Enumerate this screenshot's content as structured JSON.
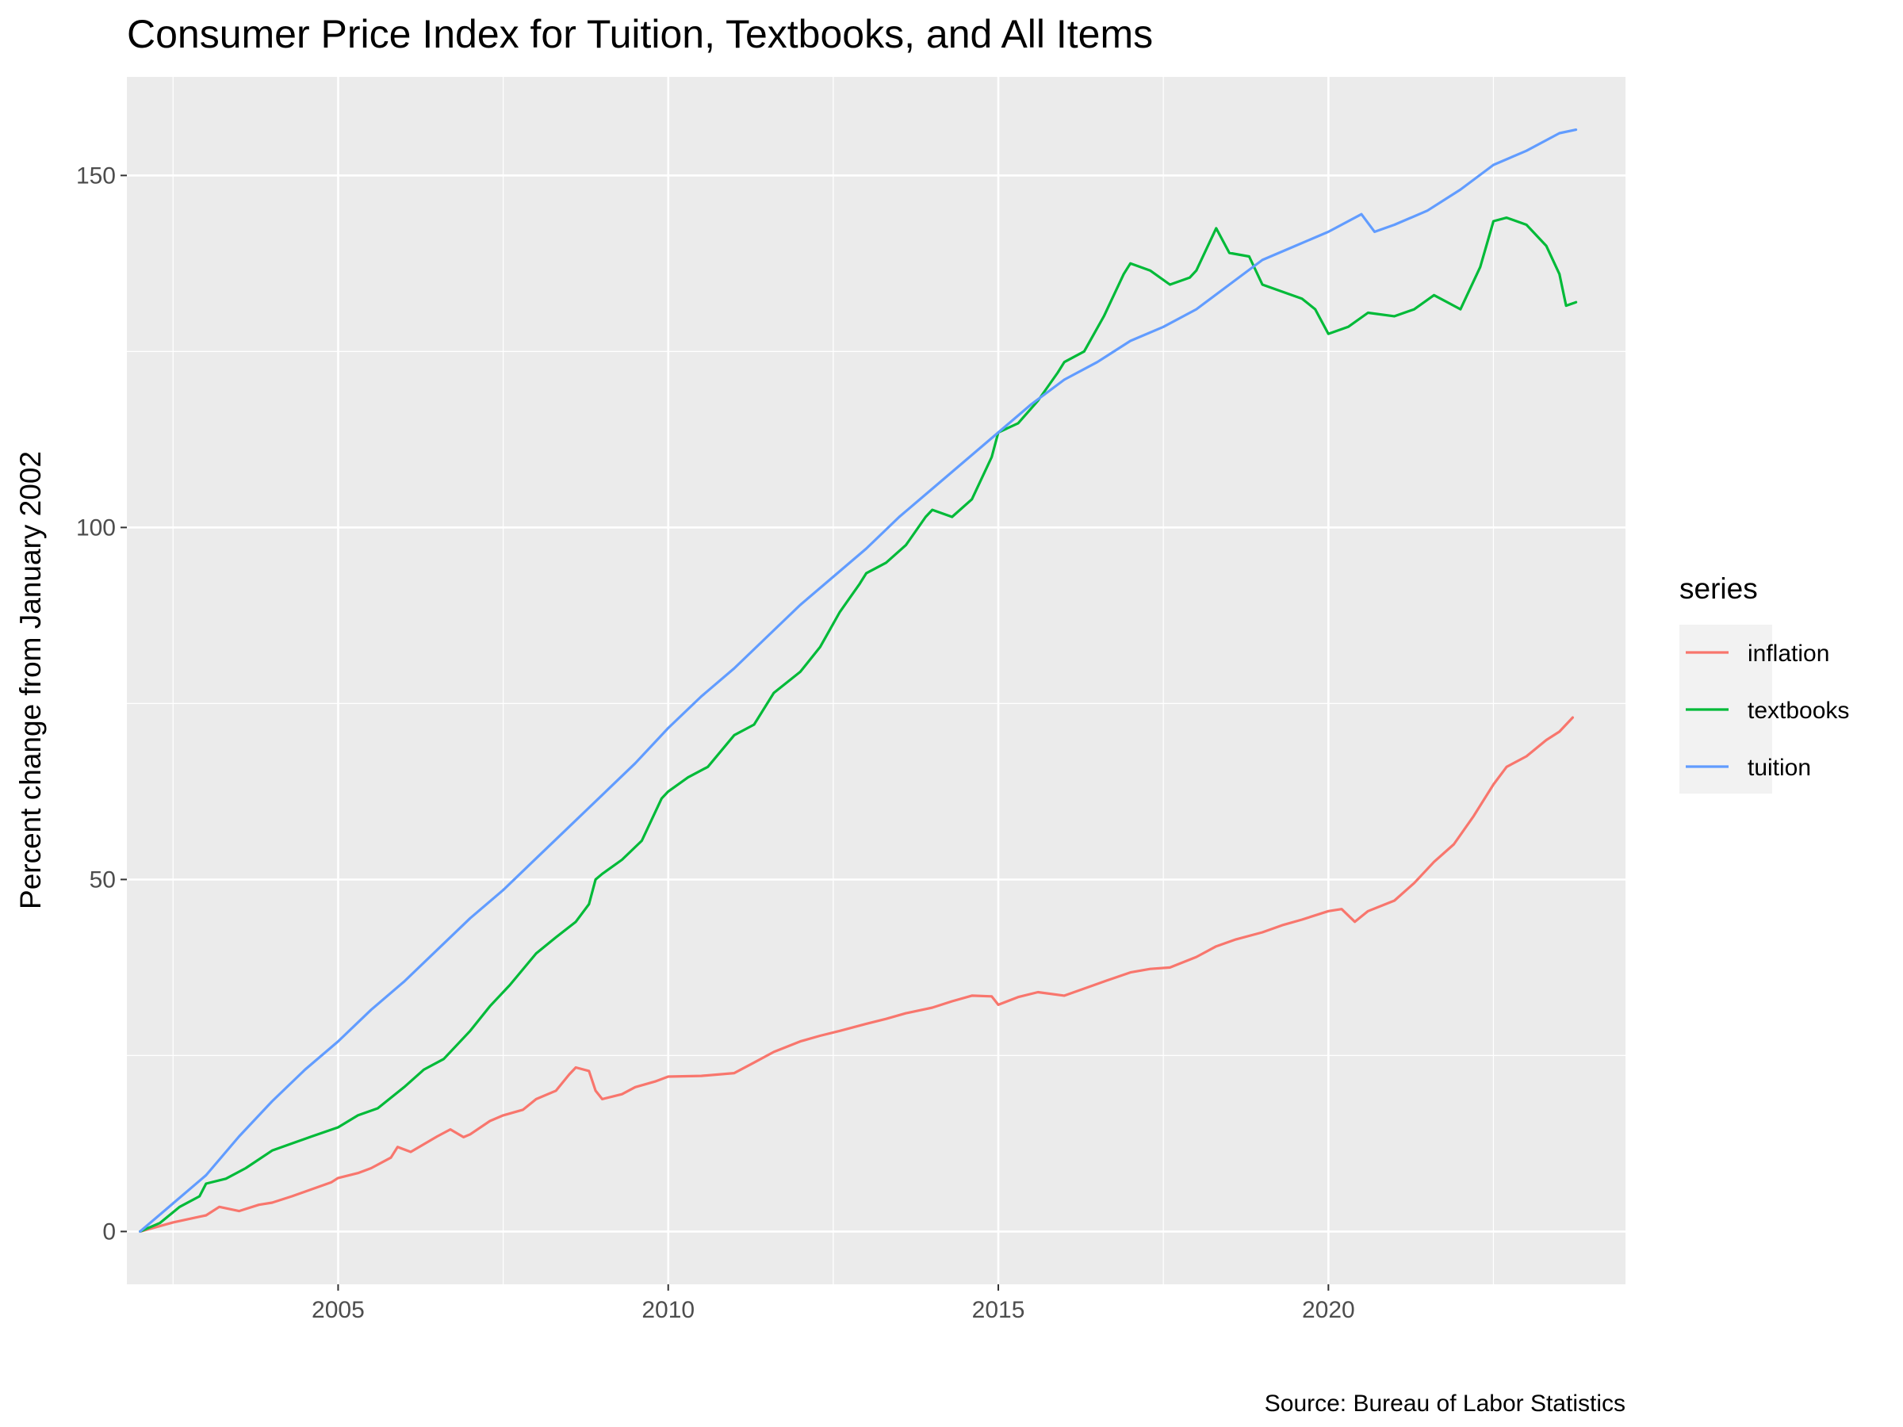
{
  "chart_data": {
    "type": "line",
    "title": "Consumer Price Index for Tuition, Textbooks, and All Items",
    "xlabel": "",
    "ylabel": "Percent change from January 2002",
    "caption": "Source: Bureau of Labor Statistics",
    "xlim": [
      2001.8,
      2024.5
    ],
    "ylim": [
      -7.5,
      164
    ],
    "xticks": [
      2005,
      2010,
      2015,
      2020
    ],
    "yticks": [
      0,
      50,
      100,
      150
    ],
    "grid": true,
    "legend": {
      "title": "series",
      "position": "right"
    },
    "series": [
      {
        "name": "inflation",
        "color": "#F8766D",
        "points": [
          [
            2002.0,
            0
          ],
          [
            2002.5,
            1.3
          ],
          [
            2003.0,
            2.3
          ],
          [
            2003.2,
            3.5
          ],
          [
            2003.5,
            2.9
          ],
          [
            2003.8,
            3.8
          ],
          [
            2004.0,
            4.1
          ],
          [
            2004.3,
            5.0
          ],
          [
            2004.6,
            6.0
          ],
          [
            2004.9,
            7.0
          ],
          [
            2005.0,
            7.6
          ],
          [
            2005.3,
            8.3
          ],
          [
            2005.5,
            9.0
          ],
          [
            2005.8,
            10.5
          ],
          [
            2005.9,
            12.0
          ],
          [
            2006.1,
            11.3
          ],
          [
            2006.5,
            13.5
          ],
          [
            2006.7,
            14.5
          ],
          [
            2006.9,
            13.4
          ],
          [
            2007.0,
            13.8
          ],
          [
            2007.3,
            15.7
          ],
          [
            2007.5,
            16.5
          ],
          [
            2007.8,
            17.3
          ],
          [
            2008.0,
            18.8
          ],
          [
            2008.3,
            20.0
          ],
          [
            2008.5,
            22.3
          ],
          [
            2008.6,
            23.3
          ],
          [
            2008.8,
            22.8
          ],
          [
            2008.9,
            20.0
          ],
          [
            2009.0,
            18.8
          ],
          [
            2009.3,
            19.5
          ],
          [
            2009.5,
            20.5
          ],
          [
            2009.8,
            21.3
          ],
          [
            2010.0,
            22.0
          ],
          [
            2010.5,
            22.1
          ],
          [
            2011.0,
            22.5
          ],
          [
            2011.3,
            24.0
          ],
          [
            2011.6,
            25.5
          ],
          [
            2012.0,
            27.0
          ],
          [
            2012.3,
            27.8
          ],
          [
            2012.6,
            28.5
          ],
          [
            2013.0,
            29.5
          ],
          [
            2013.3,
            30.2
          ],
          [
            2013.6,
            31.0
          ],
          [
            2014.0,
            31.8
          ],
          [
            2014.3,
            32.7
          ],
          [
            2014.6,
            33.5
          ],
          [
            2014.9,
            33.4
          ],
          [
            2015.0,
            32.2
          ],
          [
            2015.3,
            33.3
          ],
          [
            2015.6,
            34.0
          ],
          [
            2016.0,
            33.5
          ],
          [
            2016.3,
            34.5
          ],
          [
            2016.6,
            35.5
          ],
          [
            2017.0,
            36.8
          ],
          [
            2017.3,
            37.3
          ],
          [
            2017.6,
            37.5
          ],
          [
            2018.0,
            39.0
          ],
          [
            2018.3,
            40.5
          ],
          [
            2018.6,
            41.5
          ],
          [
            2019.0,
            42.5
          ],
          [
            2019.3,
            43.5
          ],
          [
            2019.6,
            44.3
          ],
          [
            2020.0,
            45.5
          ],
          [
            2020.2,
            45.8
          ],
          [
            2020.4,
            44.0
          ],
          [
            2020.6,
            45.5
          ],
          [
            2021.0,
            47.0
          ],
          [
            2021.3,
            49.5
          ],
          [
            2021.6,
            52.5
          ],
          [
            2021.9,
            55.0
          ],
          [
            2022.2,
            59.0
          ],
          [
            2022.5,
            63.5
          ],
          [
            2022.7,
            66.0
          ],
          [
            2023.0,
            67.5
          ],
          [
            2023.3,
            69.8
          ],
          [
            2023.5,
            71.0
          ],
          [
            2023.7,
            73.0
          ]
        ]
      },
      {
        "name": "textbooks",
        "color": "#00BA38",
        "points": [
          [
            2002.0,
            0
          ],
          [
            2002.3,
            1.2
          ],
          [
            2002.6,
            3.5
          ],
          [
            2002.9,
            5.0
          ],
          [
            2003.0,
            6.8
          ],
          [
            2003.3,
            7.5
          ],
          [
            2003.6,
            9.0
          ],
          [
            2004.0,
            11.5
          ],
          [
            2004.3,
            12.5
          ],
          [
            2004.6,
            13.5
          ],
          [
            2005.0,
            14.8
          ],
          [
            2005.3,
            16.5
          ],
          [
            2005.6,
            17.5
          ],
          [
            2006.0,
            20.5
          ],
          [
            2006.3,
            23.0
          ],
          [
            2006.6,
            24.5
          ],
          [
            2007.0,
            28.5
          ],
          [
            2007.3,
            32.0
          ],
          [
            2007.6,
            35.0
          ],
          [
            2008.0,
            39.5
          ],
          [
            2008.3,
            41.8
          ],
          [
            2008.6,
            44.0
          ],
          [
            2008.8,
            46.5
          ],
          [
            2008.9,
            50.0
          ],
          [
            2009.0,
            50.8
          ],
          [
            2009.3,
            52.8
          ],
          [
            2009.6,
            55.5
          ],
          [
            2009.9,
            61.5
          ],
          [
            2010.0,
            62.5
          ],
          [
            2010.3,
            64.5
          ],
          [
            2010.6,
            66.0
          ],
          [
            2011.0,
            70.5
          ],
          [
            2011.3,
            72.0
          ],
          [
            2011.6,
            76.5
          ],
          [
            2012.0,
            79.5
          ],
          [
            2012.3,
            83.0
          ],
          [
            2012.6,
            88.0
          ],
          [
            2012.9,
            92.0
          ],
          [
            2013.0,
            93.5
          ],
          [
            2013.3,
            95.0
          ],
          [
            2013.6,
            97.5
          ],
          [
            2013.9,
            101.5
          ],
          [
            2014.0,
            102.5
          ],
          [
            2014.3,
            101.5
          ],
          [
            2014.6,
            104.0
          ],
          [
            2014.9,
            110.0
          ],
          [
            2015.0,
            113.5
          ],
          [
            2015.3,
            114.8
          ],
          [
            2015.6,
            118.0
          ],
          [
            2015.9,
            122.0
          ],
          [
            2016.0,
            123.5
          ],
          [
            2016.3,
            125.0
          ],
          [
            2016.6,
            130.0
          ],
          [
            2016.9,
            136.0
          ],
          [
            2017.0,
            137.5
          ],
          [
            2017.3,
            136.5
          ],
          [
            2017.6,
            134.5
          ],
          [
            2017.9,
            135.5
          ],
          [
            2018.0,
            136.5
          ],
          [
            2018.3,
            142.5
          ],
          [
            2018.5,
            139.0
          ],
          [
            2018.8,
            138.5
          ],
          [
            2019.0,
            134.5
          ],
          [
            2019.3,
            133.5
          ],
          [
            2019.6,
            132.5
          ],
          [
            2019.8,
            131.0
          ],
          [
            2020.0,
            127.5
          ],
          [
            2020.3,
            128.5
          ],
          [
            2020.6,
            130.5
          ],
          [
            2021.0,
            130.0
          ],
          [
            2021.3,
            131.0
          ],
          [
            2021.6,
            133.0
          ],
          [
            2022.0,
            131.0
          ],
          [
            2022.3,
            137.0
          ],
          [
            2022.5,
            143.5
          ],
          [
            2022.7,
            144.0
          ],
          [
            2023.0,
            143.0
          ],
          [
            2023.3,
            140.0
          ],
          [
            2023.5,
            136.0
          ],
          [
            2023.6,
            131.5
          ],
          [
            2023.75,
            132.0
          ]
        ]
      },
      {
        "name": "tuition",
        "color": "#619CFF",
        "points": [
          [
            2002.0,
            0
          ],
          [
            2002.5,
            4.0
          ],
          [
            2003.0,
            8.0
          ],
          [
            2003.5,
            13.5
          ],
          [
            2004.0,
            18.5
          ],
          [
            2004.5,
            23.0
          ],
          [
            2005.0,
            27.0
          ],
          [
            2005.5,
            31.5
          ],
          [
            2006.0,
            35.5
          ],
          [
            2006.5,
            40.0
          ],
          [
            2007.0,
            44.5
          ],
          [
            2007.5,
            48.5
          ],
          [
            2008.0,
            53.0
          ],
          [
            2008.5,
            57.5
          ],
          [
            2009.0,
            62.0
          ],
          [
            2009.5,
            66.5
          ],
          [
            2010.0,
            71.5
          ],
          [
            2010.5,
            76.0
          ],
          [
            2011.0,
            80.0
          ],
          [
            2011.5,
            84.5
          ],
          [
            2012.0,
            89.0
          ],
          [
            2012.5,
            93.0
          ],
          [
            2013.0,
            97.0
          ],
          [
            2013.5,
            101.5
          ],
          [
            2014.0,
            105.5
          ],
          [
            2014.5,
            109.5
          ],
          [
            2015.0,
            113.5
          ],
          [
            2015.5,
            117.5
          ],
          [
            2016.0,
            121.0
          ],
          [
            2016.5,
            123.5
          ],
          [
            2017.0,
            126.5
          ],
          [
            2017.5,
            128.5
          ],
          [
            2018.0,
            131.0
          ],
          [
            2018.5,
            134.5
          ],
          [
            2019.0,
            138.0
          ],
          [
            2019.5,
            140.0
          ],
          [
            2020.0,
            142.0
          ],
          [
            2020.5,
            144.5
          ],
          [
            2020.7,
            142.0
          ],
          [
            2021.0,
            143.0
          ],
          [
            2021.5,
            145.0
          ],
          [
            2022.0,
            148.0
          ],
          [
            2022.5,
            151.5
          ],
          [
            2023.0,
            153.5
          ],
          [
            2023.5,
            156.0
          ],
          [
            2023.75,
            156.5
          ]
        ]
      }
    ]
  }
}
